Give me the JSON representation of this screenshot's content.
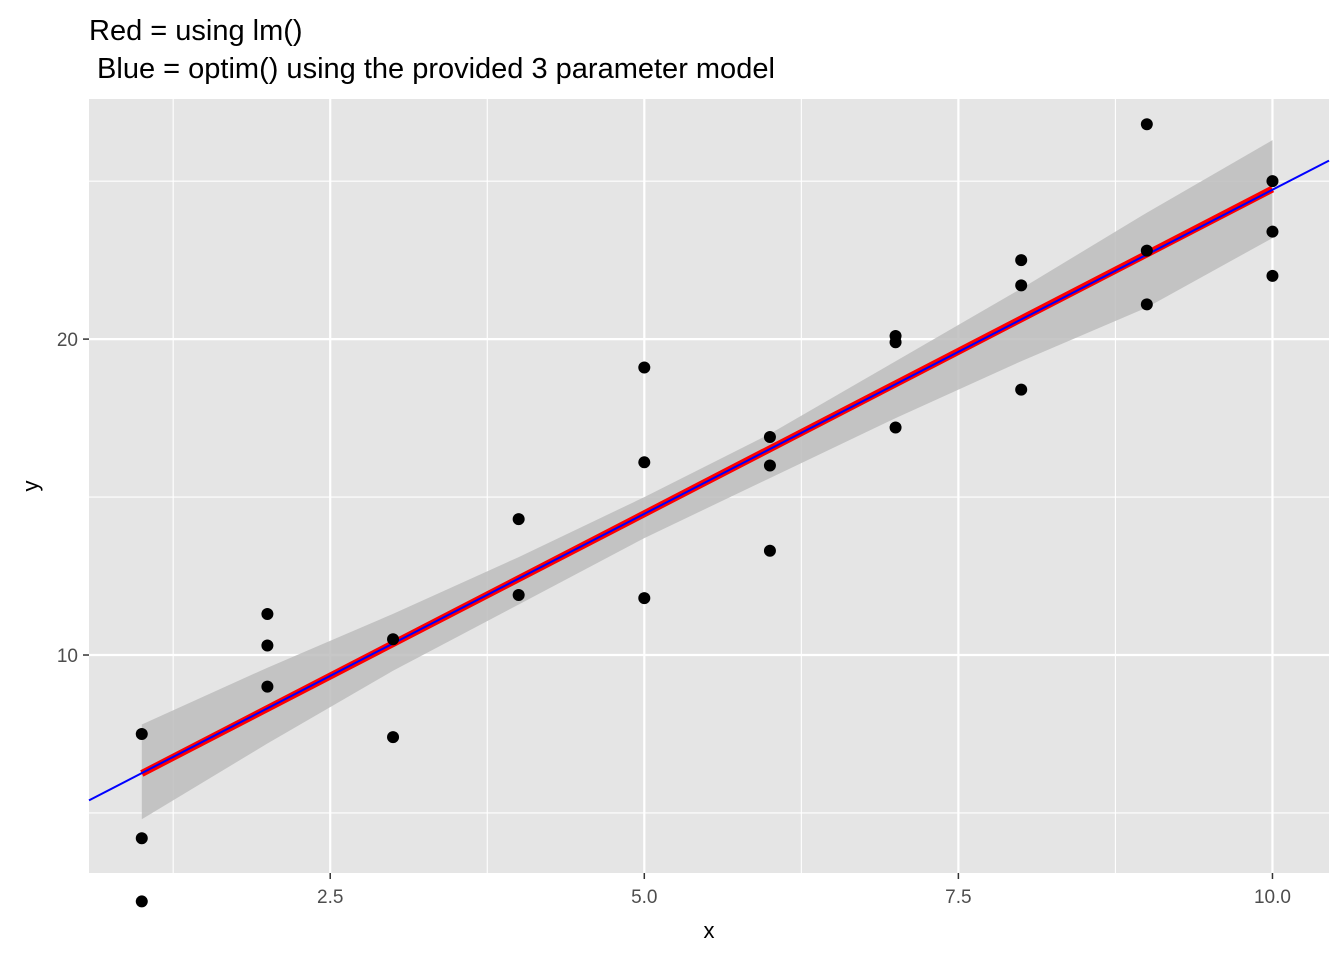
{
  "chart_data": {
    "type": "scatter",
    "title_lines": [
      "Red = using lm()",
      " Blue = optim() using the provided 3 parameter model"
    ],
    "xlabel": "x",
    "ylabel": "y",
    "xlim": [
      0.58,
      10.45
    ],
    "ylim": [
      3.1,
      27.6
    ],
    "xticks": [
      2.5,
      5.0,
      7.5,
      10.0
    ],
    "xtick_labels": [
      "2.5",
      "5.0",
      "7.5",
      "10.0"
    ],
    "yticks": [
      10,
      20
    ],
    "ytick_labels": [
      "10",
      "20"
    ],
    "minor_xticks": [
      1.25,
      3.75,
      6.25,
      8.75
    ],
    "minor_yticks": [
      5,
      15,
      25
    ],
    "grid": true,
    "points": [
      {
        "x": 1,
        "y": 7.5
      },
      {
        "x": 1,
        "y": 4.2
      },
      {
        "x": 1,
        "y": 2.2
      },
      {
        "x": 2,
        "y": 11.3
      },
      {
        "x": 2,
        "y": 10.3
      },
      {
        "x": 2,
        "y": 9.0
      },
      {
        "x": 3,
        "y": 10.5
      },
      {
        "x": 3,
        "y": 7.4
      },
      {
        "x": 4,
        "y": 14.3
      },
      {
        "x": 4,
        "y": 11.9
      },
      {
        "x": 5,
        "y": 19.1
      },
      {
        "x": 5,
        "y": 16.1
      },
      {
        "x": 5,
        "y": 11.8
      },
      {
        "x": 6,
        "y": 16.9
      },
      {
        "x": 6,
        "y": 16.0
      },
      {
        "x": 6,
        "y": 13.3
      },
      {
        "x": 7,
        "y": 20.1
      },
      {
        "x": 7,
        "y": 19.9
      },
      {
        "x": 7,
        "y": 17.2
      },
      {
        "x": 8,
        "y": 22.5
      },
      {
        "x": 8,
        "y": 21.7
      },
      {
        "x": 8,
        "y": 18.4
      },
      {
        "x": 9,
        "y": 26.8
      },
      {
        "x": 9,
        "y": 22.8
      },
      {
        "x": 9,
        "y": 21.1
      },
      {
        "x": 10,
        "y": 25.0
      },
      {
        "x": 10,
        "y": 23.4
      },
      {
        "x": 10,
        "y": 22.0
      }
    ],
    "lm_fit": {
      "color": "#ff0000",
      "x": [
        1,
        10
      ],
      "y": [
        6.25,
        24.75
      ]
    },
    "confidence_band": {
      "color": "#bdbdbd",
      "x": [
        1,
        2,
        3,
        4,
        5,
        6,
        7,
        8,
        9,
        10
      ],
      "lower": [
        4.8,
        7.2,
        9.5,
        11.6,
        13.7,
        15.6,
        17.5,
        19.3,
        21.0,
        23.2
      ],
      "upper": [
        7.8,
        9.6,
        11.3,
        13.1,
        15.0,
        17.0,
        19.3,
        21.6,
        24.0,
        26.3
      ]
    },
    "optim_fit": {
      "color": "#0000ff",
      "x": [
        0.58,
        10.45
      ],
      "y": [
        5.4,
        25.65
      ]
    }
  }
}
